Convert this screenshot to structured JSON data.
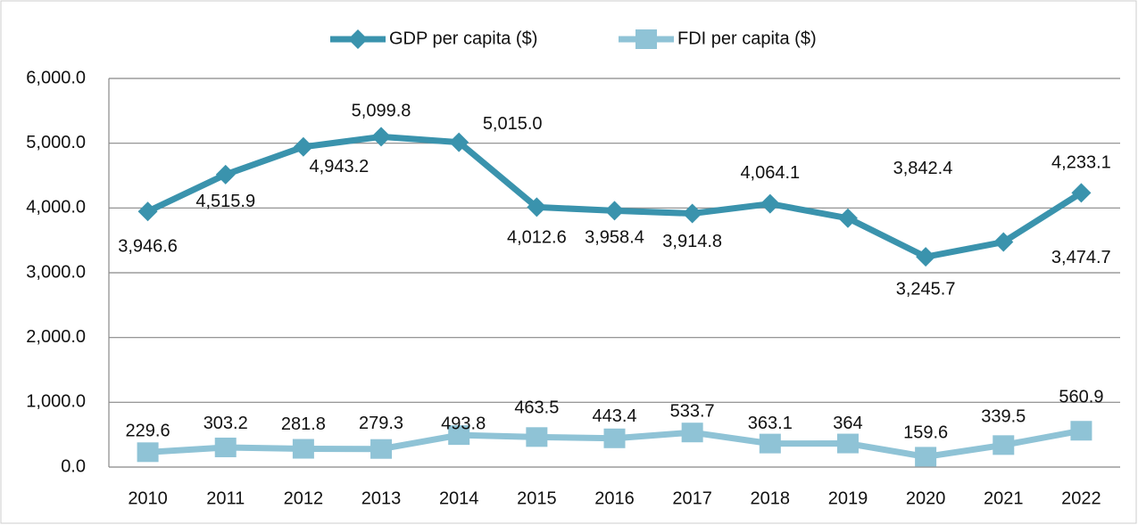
{
  "chart_data": {
    "type": "line",
    "categories": [
      "2010",
      "2011",
      "2012",
      "2013",
      "2014",
      "2015",
      "2016",
      "2017",
      "2018",
      "2019",
      "2020",
      "2021",
      "2022"
    ],
    "series": [
      {
        "name": "GDP per capita ($)",
        "color": "#3a93ad",
        "marker": "diamond",
        "values": [
          3946.6,
          4515.9,
          4943.2,
          5099.8,
          5015.0,
          4012.6,
          3958.4,
          3914.8,
          4064.1,
          3842.4,
          3245.7,
          3474.7,
          4233.1
        ],
        "value_labels": [
          "3,946.6",
          "4,515.9",
          "4,943.2",
          "5,099.8",
          "5,015.0",
          "4,012.6",
          "3,958.4",
          "3,914.8",
          "4,064.1",
          "3,842.4",
          "3,245.7",
          "3,474.7",
          "4,233.1"
        ]
      },
      {
        "name": "FDI per capita ($)",
        "color": "#8fc3d6",
        "marker": "square",
        "values": [
          229.6,
          303.2,
          281.8,
          279.3,
          493.8,
          463.5,
          443.4,
          533.7,
          363.1,
          364,
          159.6,
          339.5,
          560.9
        ],
        "value_labels": [
          "229.6",
          "303.2",
          "281.8",
          "279.3",
          "493.8",
          "463.5",
          "443.4",
          "533.7",
          "363.1",
          "364",
          "159.6",
          "339.5",
          "560.9"
        ]
      }
    ],
    "ylim": [
      0,
      6000
    ],
    "yticks": [
      {
        "value": 0,
        "label": "0.0"
      },
      {
        "value": 1000,
        "label": "1,000.0"
      },
      {
        "value": 2000,
        "label": "2,000.0"
      },
      {
        "value": 3000,
        "label": "3,000.0"
      },
      {
        "value": 4000,
        "label": "4,000.0"
      },
      {
        "value": 5000,
        "label": "5,000.0"
      },
      {
        "value": 6000,
        "label": "6,000.0"
      }
    ],
    "grid": true,
    "legend": "top"
  }
}
